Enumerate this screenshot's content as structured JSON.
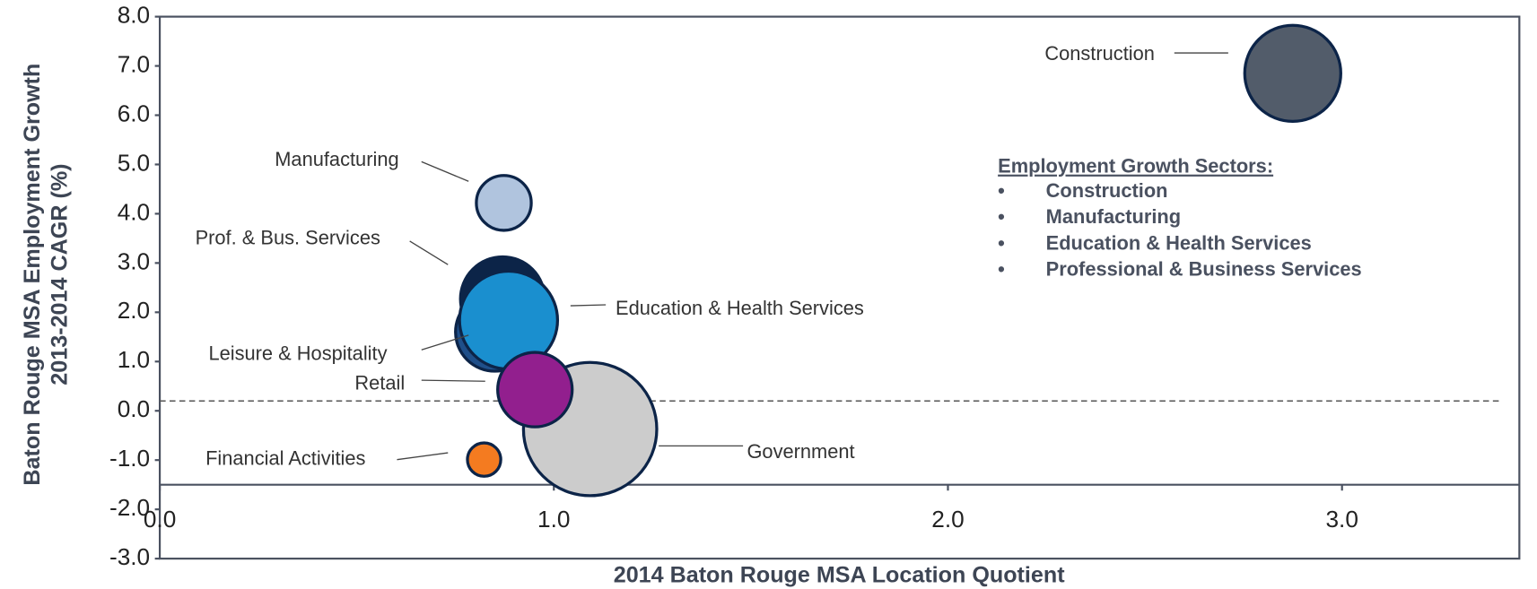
{
  "chart_data": {
    "type": "bubble",
    "xlabel": "2014 Baton Rouge MSA Location Quotient",
    "ylabel": [
      "Baton Rouge MSA Employment Growth",
      "2013-2014 CAGR (%)"
    ],
    "xlim": [
      0,
      3.45
    ],
    "ylim": [
      -3,
      8
    ],
    "xticks": [
      {
        "value": 0,
        "label": "0.0"
      },
      {
        "value": 1,
        "label": "1.0"
      },
      {
        "value": 2,
        "label": "2.0"
      },
      {
        "value": 3,
        "label": "3.0"
      }
    ],
    "yticks": [
      {
        "value": -3,
        "label": "-3.0"
      },
      {
        "value": -2,
        "label": "-2.0"
      },
      {
        "value": -1,
        "label": "-1.0"
      },
      {
        "value": 0,
        "label": "0.0"
      },
      {
        "value": 1,
        "label": "1.0"
      },
      {
        "value": 2,
        "label": "2.0"
      },
      {
        "value": 3,
        "label": "3.0"
      },
      {
        "value": 4,
        "label": "4.0"
      },
      {
        "value": 5,
        "label": "5.0"
      },
      {
        "value": 6,
        "label": "6.0"
      },
      {
        "value": 7,
        "label": "7.0"
      },
      {
        "value": 8,
        "label": "8.0"
      }
    ],
    "x_axis_at": -1.5,
    "reference_line": 0.2,
    "series": [
      {
        "name": "Construction",
        "color": "#525c6a",
        "x": 2.875,
        "y": 6.85,
        "size": 49
      },
      {
        "name": "Manufacturing",
        "color": "#b0c4de",
        "x": 0.873,
        "y": 4.22,
        "size": 28
      },
      {
        "name": "Leisure & Hospitality",
        "color": "#1f4f8a",
        "x": 0.85,
        "y": 1.6,
        "size": 40
      },
      {
        "name": "Prof. & Bus. Services",
        "color": "#0c2448",
        "x": 0.87,
        "y": 2.27,
        "size": 43
      },
      {
        "name": "Education & Health Services",
        "color": "#1a8fcf",
        "x": 0.885,
        "y": 1.84,
        "size": 50
      },
      {
        "name": "Government",
        "color": "#cccccc",
        "x": 1.092,
        "y": -0.37,
        "size": 68
      },
      {
        "name": "Retail",
        "color": "#921f8e",
        "x": 0.952,
        "y": 0.43,
        "size": 38
      },
      {
        "name": "Financial Activities",
        "color": "#f47b20",
        "x": 0.823,
        "y": -0.99,
        "size": 17
      }
    ],
    "annotation": {
      "title": "Employment Growth Sectors:",
      "items": [
        "Construction",
        "Manufacturing",
        "Education & Health Services",
        "Professional & Business Services"
      ]
    }
  }
}
